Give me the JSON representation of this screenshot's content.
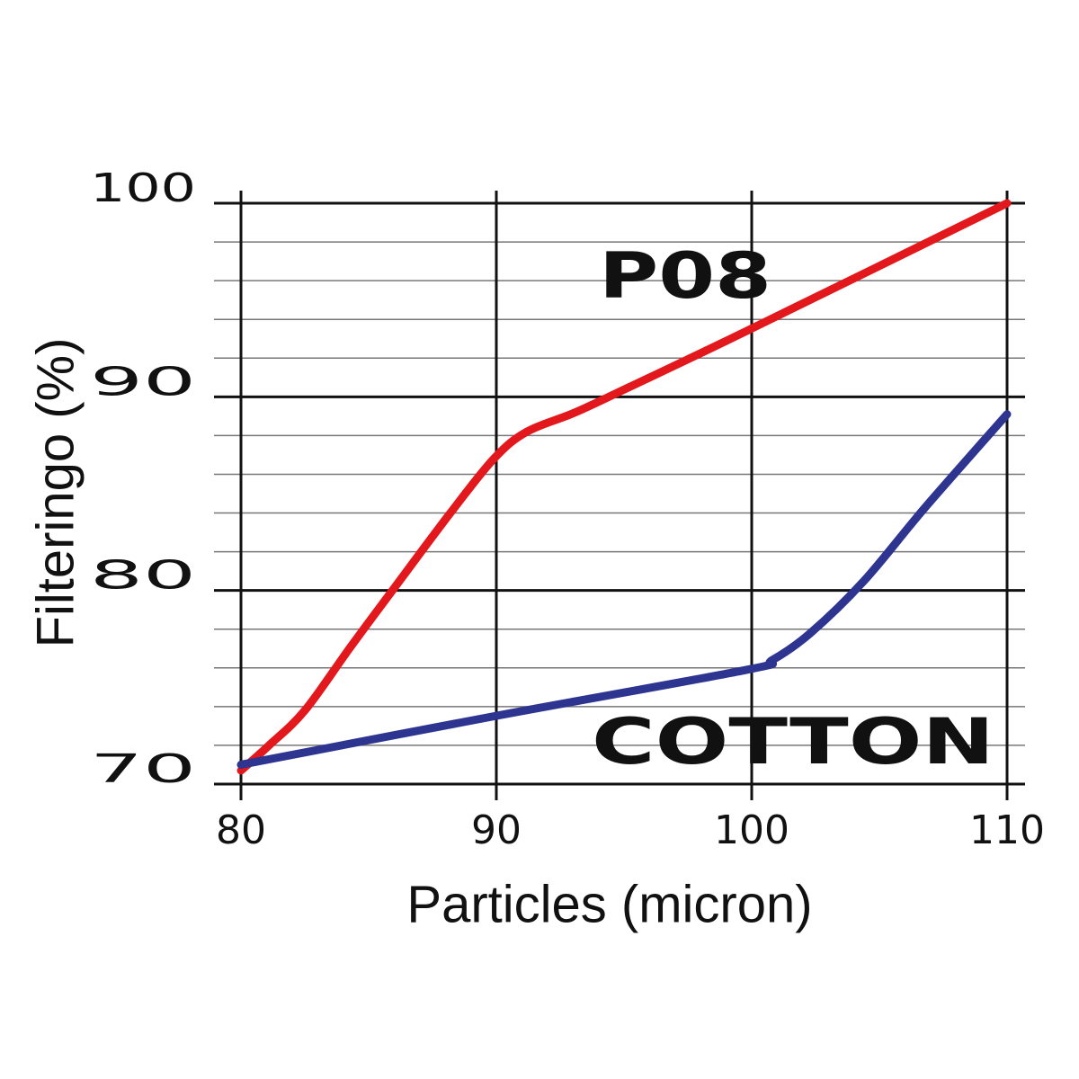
{
  "chart_data": {
    "type": "line",
    "x_label": "Particles (micron)",
    "y_label": "Filteringo (%)",
    "xlim": [
      80,
      110
    ],
    "xticks": [
      80,
      90,
      100,
      110
    ],
    "ylim": [
      70,
      100
    ],
    "yticks": [
      70,
      80,
      90,
      100
    ],
    "minor_yticks": [
      72,
      74,
      76,
      78,
      82,
      84,
      86,
      88,
      92,
      94,
      96,
      98
    ],
    "grid": true,
    "series": [
      {
        "name": "P08",
        "color": "#e3181c",
        "x": [
          80,
          81.1,
          82.5,
          84.3,
          86.1,
          88.2,
          89.9,
          91.2,
          93.1,
          95.2,
          99.8,
          110
        ],
        "values": [
          70.7,
          72.0,
          73.8,
          77.1,
          80.3,
          84.0,
          86.8,
          88.2,
          89.2,
          90.5,
          93.4,
          100
        ]
      },
      {
        "name": "COTTON",
        "color": "#2e3590",
        "x": [
          80,
          89.9,
          99.8,
          100.8,
          102.3,
          104.4,
          106.8,
          110
        ],
        "values": [
          71.0,
          73.5,
          75.9,
          76.4,
          77.8,
          80.5,
          84.3,
          89.1
        ]
      }
    ]
  }
}
